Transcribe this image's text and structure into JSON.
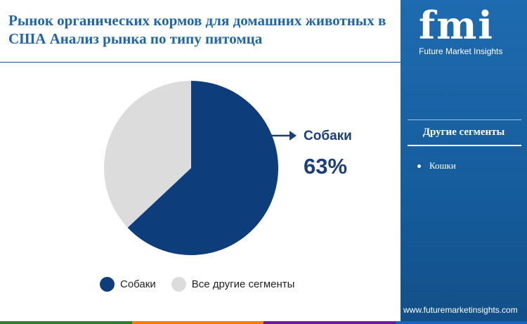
{
  "title": "Рынок органических кормов для домашних животных в США Анализ рынка  по типу питомца",
  "chart_data": {
    "type": "pie",
    "slices": [
      {
        "label": "Собаки",
        "value": 63,
        "color": "#0d3d7a"
      },
      {
        "label": "Все другие сегменты",
        "value": 37,
        "color": "#dcdcdc"
      }
    ],
    "start_angle_deg": 0,
    "direction": "clockwise",
    "legend_placement": "bottom"
  },
  "callout": {
    "label": "Собаки",
    "value": "63%"
  },
  "legend": [
    {
      "label": "Собаки",
      "color": "#0d3d7a"
    },
    {
      "label": "Все другие сегменты",
      "color": "#dcdcdc"
    }
  ],
  "side_panel": {
    "brand_letters": "fmi",
    "brand_name": "Future Market Insights",
    "heading": "Другие сегменты",
    "items": [
      "Кошки"
    ],
    "website": "www.futuremarketinsights.com",
    "background": "#1a64a8"
  },
  "colors": {
    "title": "#1f66a8",
    "accent_dark": "#1a3f7a",
    "bottom_bar": [
      "#2e7d32",
      "#f57c00",
      "#6a1b9a",
      "#1565c0"
    ]
  }
}
